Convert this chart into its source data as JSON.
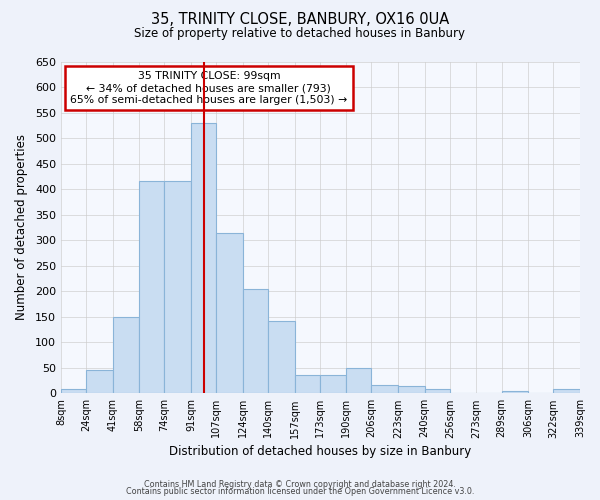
{
  "title": "35, TRINITY CLOSE, BANBURY, OX16 0UA",
  "subtitle": "Size of property relative to detached houses in Banbury",
  "xlabel": "Distribution of detached houses by size in Banbury",
  "ylabel": "Number of detached properties",
  "bar_labels": [
    "8sqm",
    "24sqm",
    "41sqm",
    "58sqm",
    "74sqm",
    "91sqm",
    "107sqm",
    "124sqm",
    "140sqm",
    "157sqm",
    "173sqm",
    "190sqm",
    "206sqm",
    "223sqm",
    "240sqm",
    "256sqm",
    "273sqm",
    "289sqm",
    "306sqm",
    "322sqm",
    "339sqm"
  ],
  "bar_values": [
    8,
    45,
    150,
    415,
    415,
    530,
    315,
    205,
    142,
    35,
    35,
    50,
    16,
    14,
    8,
    0,
    0,
    5,
    0,
    8
  ],
  "bin_edges": [
    8,
    24,
    41,
    58,
    74,
    91,
    107,
    124,
    140,
    157,
    173,
    190,
    206,
    223,
    240,
    256,
    273,
    289,
    306,
    322,
    339
  ],
  "bar_color": "#c9ddf2",
  "bar_edge_color": "#8ab4d8",
  "vline_x": 99,
  "vline_color": "#cc0000",
  "annotation_text": "35 TRINITY CLOSE: 99sqm\n← 34% of detached houses are smaller (793)\n65% of semi-detached houses are larger (1,503) →",
  "annotation_box_color": "#ffffff",
  "annotation_box_edge": "#cc0000",
  "ylim": [
    0,
    650
  ],
  "yticks": [
    0,
    50,
    100,
    150,
    200,
    250,
    300,
    350,
    400,
    450,
    500,
    550,
    600,
    650
  ],
  "footer_line1": "Contains HM Land Registry data © Crown copyright and database right 2024.",
  "footer_line2": "Contains public sector information licensed under the Open Government Licence v3.0.",
  "bg_color": "#eef2fa",
  "plot_bg_color": "#f5f8fe"
}
